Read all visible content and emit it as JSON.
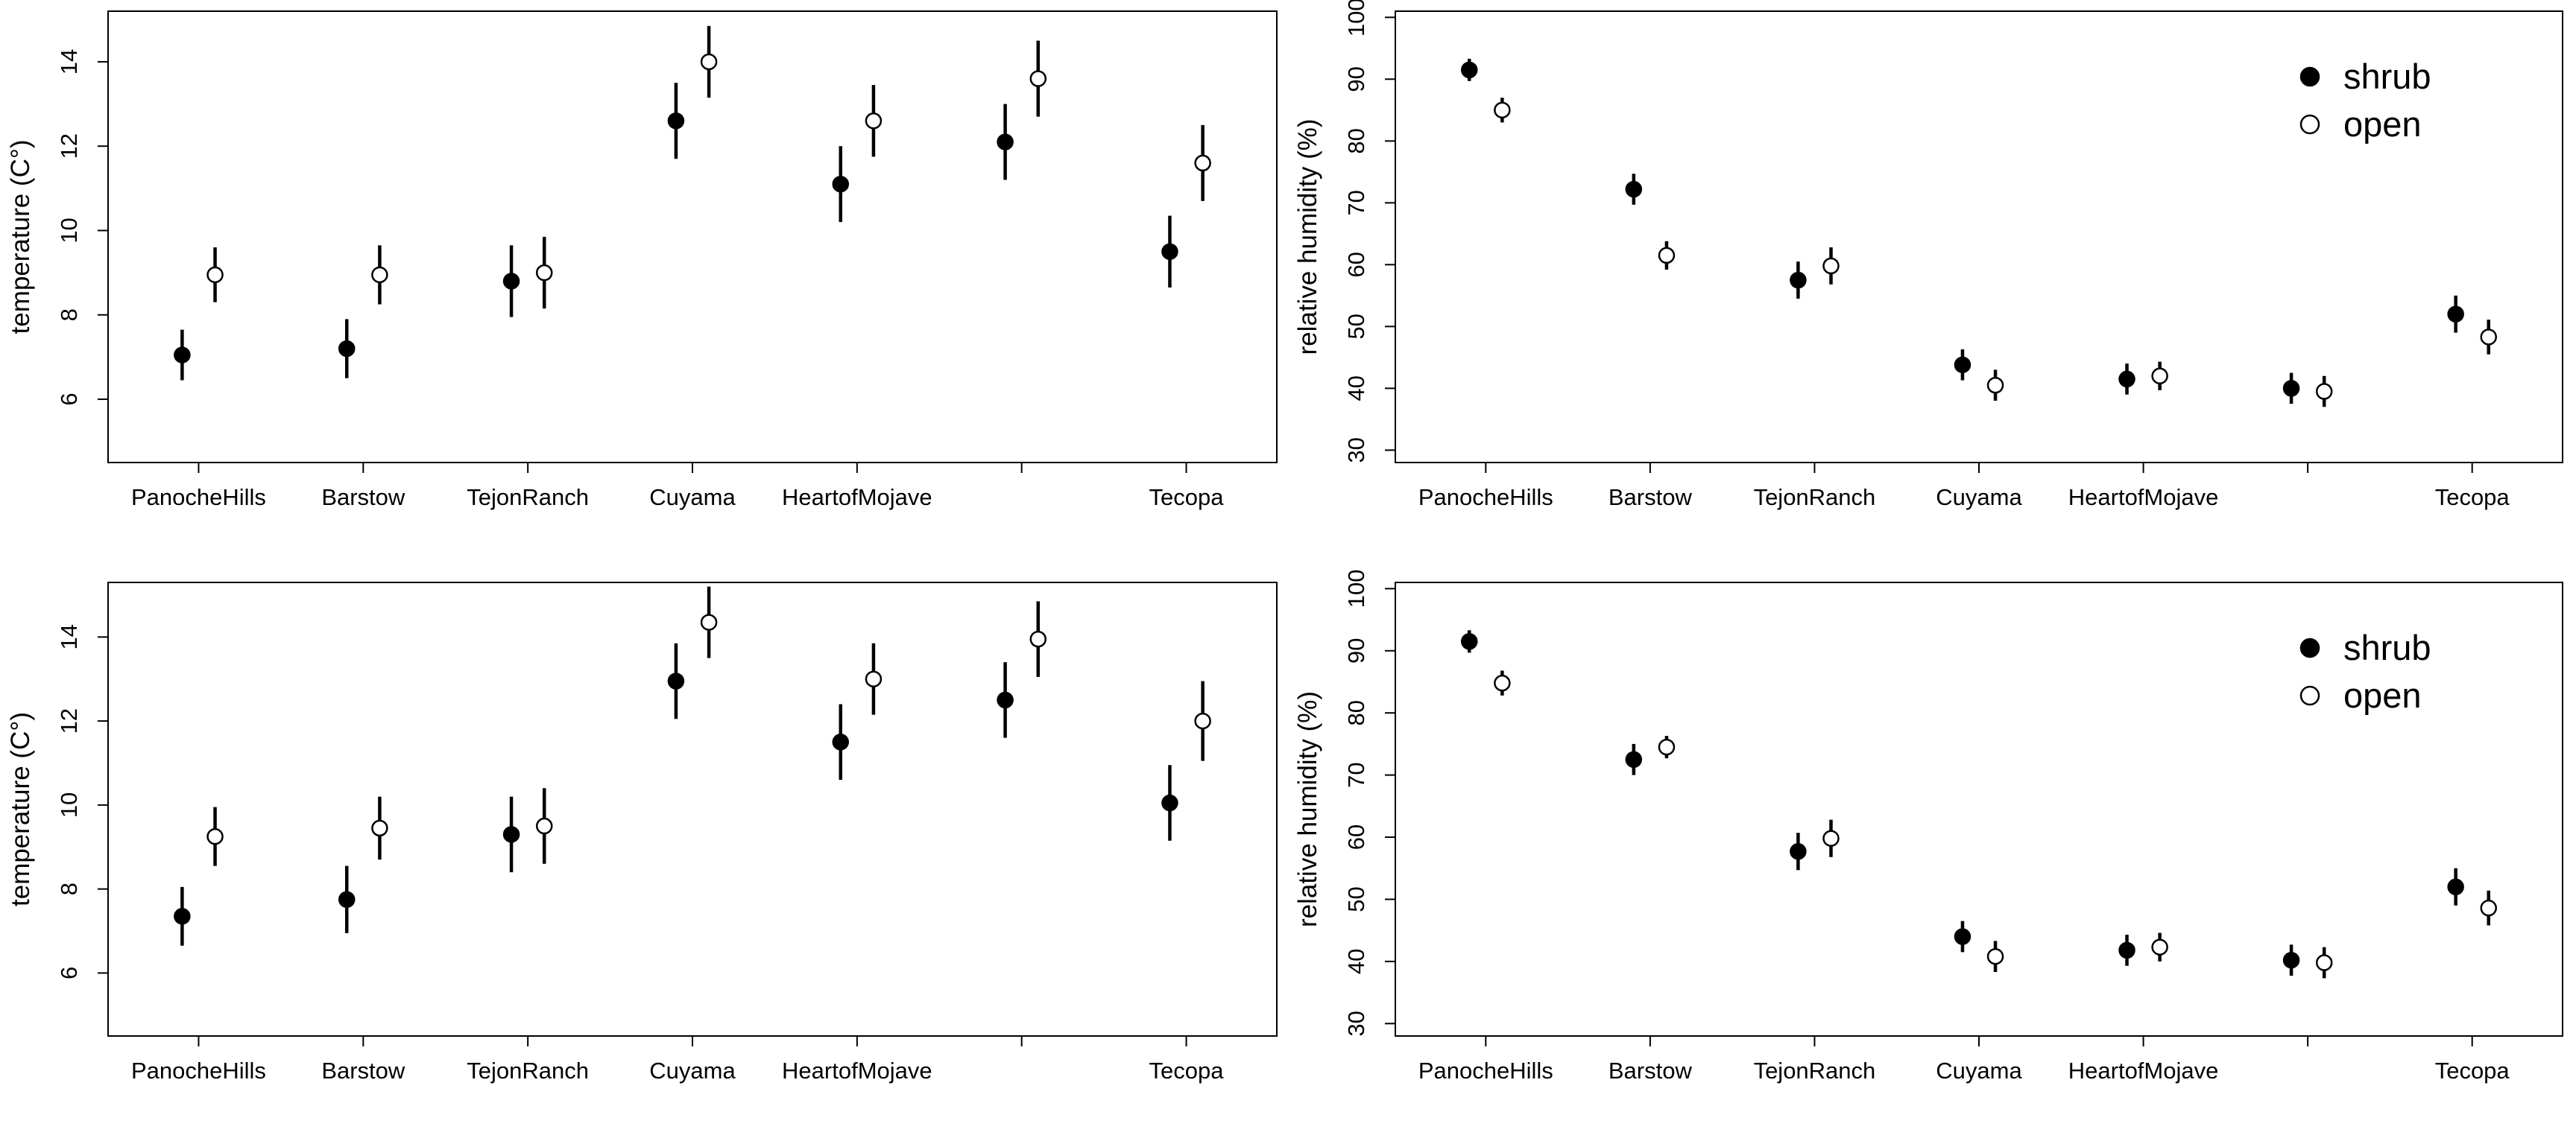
{
  "colors": {
    "shrub_fill": "#000000",
    "open_fill": "#ffffff",
    "stroke": "#000000",
    "background": "#ffffff"
  },
  "chart_data": [
    {
      "type": "scatter",
      "ylabel": "temperature (C°)",
      "ylim": [
        4.5,
        15.2
      ],
      "yticks": [
        6,
        8,
        10,
        12,
        14
      ],
      "xlim": [
        0.45,
        7.55
      ],
      "categories": [
        "PanocheHills",
        "Barstow",
        "TejonRanch",
        "Cuyama",
        "HeartofMojave",
        "",
        "Tecopa"
      ],
      "error_bars": true,
      "legend": null,
      "series": [
        {
          "name": "shrub",
          "marker": "filled-circle",
          "values": [
            7.05,
            7.2,
            8.8,
            12.6,
            11.1,
            12.1,
            9.5
          ],
          "error": [
            0.6,
            0.7,
            0.85,
            0.9,
            0.9,
            0.9,
            0.85
          ]
        },
        {
          "name": "open",
          "marker": "open-circle",
          "values": [
            8.95,
            8.95,
            9.0,
            14.0,
            12.6,
            13.6,
            11.6
          ],
          "error": [
            0.65,
            0.7,
            0.85,
            0.85,
            0.85,
            0.9,
            0.9
          ]
        }
      ]
    },
    {
      "type": "scatter",
      "ylabel": "relative humidity (%)",
      "ylim": [
        28,
        101
      ],
      "yticks": [
        30,
        40,
        50,
        60,
        70,
        80,
        90,
        100
      ],
      "xlim": [
        0.45,
        7.55
      ],
      "categories": [
        "PanocheHills",
        "Barstow",
        "TejonRanch",
        "Cuyama",
        "HeartofMojave",
        "",
        "Tecopa"
      ],
      "error_bars": true,
      "legend": {
        "position": "top-right",
        "entries": [
          "shrub",
          "open"
        ]
      },
      "series": [
        {
          "name": "shrub",
          "marker": "filled-circle",
          "values": [
            91.5,
            72.2,
            57.5,
            43.8,
            41.5,
            40.0,
            52.0
          ],
          "error": [
            1.8,
            2.5,
            3.0,
            2.5,
            2.5,
            2.5,
            3.0
          ]
        },
        {
          "name": "open",
          "marker": "open-circle",
          "values": [
            85.0,
            61.5,
            59.8,
            40.5,
            42.0,
            39.5,
            48.3
          ],
          "error": [
            2.0,
            2.3,
            3.0,
            2.5,
            2.3,
            2.5,
            2.8
          ]
        }
      ]
    },
    {
      "type": "scatter",
      "ylabel": "temperature (C°)",
      "ylim": [
        4.5,
        15.3
      ],
      "yticks": [
        6,
        8,
        10,
        12,
        14
      ],
      "xlim": [
        0.45,
        7.55
      ],
      "categories": [
        "PanocheHills",
        "Barstow",
        "TejonRanch",
        "Cuyama",
        "HeartofMojave",
        "",
        "Tecopa"
      ],
      "error_bars": true,
      "legend": null,
      "series": [
        {
          "name": "shrub",
          "marker": "filled-circle",
          "values": [
            7.35,
            7.75,
            9.3,
            12.95,
            11.5,
            12.5,
            10.05
          ],
          "error": [
            0.7,
            0.8,
            0.9,
            0.9,
            0.9,
            0.9,
            0.9
          ]
        },
        {
          "name": "open",
          "marker": "open-circle",
          "values": [
            9.25,
            9.45,
            9.5,
            14.35,
            13.0,
            13.95,
            12.0
          ],
          "error": [
            0.7,
            0.75,
            0.9,
            0.85,
            0.85,
            0.9,
            0.95
          ]
        }
      ]
    },
    {
      "type": "scatter",
      "ylabel": "relative humidity (%)",
      "ylim": [
        28,
        101
      ],
      "yticks": [
        30,
        40,
        50,
        60,
        70,
        80,
        90,
        100
      ],
      "xlim": [
        0.45,
        7.55
      ],
      "categories": [
        "PanocheHills",
        "Barstow",
        "TejonRanch",
        "Cuyama",
        "HeartofMojave",
        "",
        "Tecopa"
      ],
      "error_bars": true,
      "legend": {
        "position": "top-right",
        "entries": [
          "shrub",
          "open"
        ]
      },
      "series": [
        {
          "name": "shrub",
          "marker": "filled-circle",
          "values": [
            91.5,
            72.5,
            57.7,
            44.0,
            41.8,
            40.2,
            52.0
          ],
          "error": [
            1.8,
            2.5,
            3.0,
            2.5,
            2.5,
            2.5,
            3.0
          ]
        },
        {
          "name": "open",
          "marker": "open-circle",
          "values": [
            84.8,
            74.5,
            59.8,
            40.8,
            42.3,
            39.8,
            48.6
          ],
          "error": [
            2.0,
            1.8,
            3.0,
            2.5,
            2.3,
            2.5,
            2.8
          ]
        }
      ]
    }
  ]
}
